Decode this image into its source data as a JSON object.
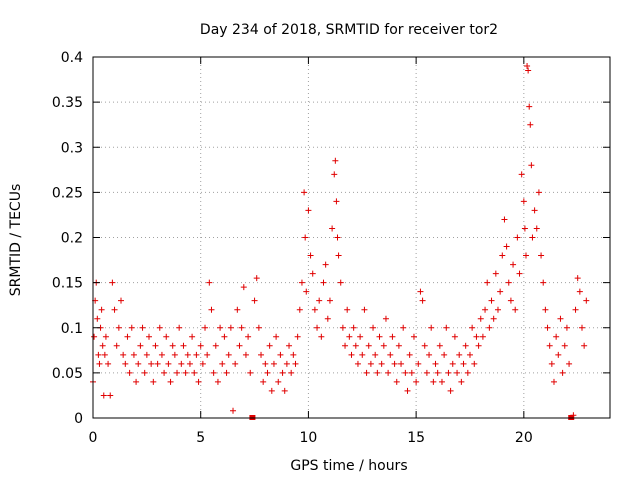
{
  "chart_data": {
    "type": "scatter",
    "title": "Day 234 of 2018, SRMTID for receiver tor2",
    "xlabel": "GPS time / hours",
    "ylabel": "SRMTID / TECUs",
    "xlim": [
      0,
      24
    ],
    "ylim": [
      0,
      0.4
    ],
    "xticks": [
      0,
      5,
      10,
      15,
      20
    ],
    "xtick_labels": [
      "0",
      "5",
      "10",
      "15",
      "20"
    ],
    "yticks": [
      0,
      0.05,
      0.1,
      0.15,
      0.2,
      0.25,
      0.3,
      0.35,
      0.4
    ],
    "ytick_labels": [
      "0",
      "0.05",
      "0.1",
      "0.15",
      "0.2",
      "0.25",
      "0.3",
      "0.35",
      "0.4"
    ],
    "grid": true,
    "marker": "+",
    "color": "#e00000",
    "series": [
      {
        "name": "SRMTID tor2",
        "points": [
          [
            0.0,
            0.04
          ],
          [
            0.05,
            0.09
          ],
          [
            0.1,
            0.13
          ],
          [
            0.15,
            0.15
          ],
          [
            0.2,
            0.11
          ],
          [
            0.25,
            0.07
          ],
          [
            0.3,
            0.06
          ],
          [
            0.35,
            0.1
          ],
          [
            0.4,
            0.12
          ],
          [
            0.45,
            0.08
          ],
          [
            0.5,
            0.025
          ],
          [
            0.55,
            0.07
          ],
          [
            0.6,
            0.09
          ],
          [
            0.7,
            0.06
          ],
          [
            0.8,
            0.025
          ],
          [
            0.9,
            0.15
          ],
          [
            1.0,
            0.12
          ],
          [
            1.1,
            0.08
          ],
          [
            1.2,
            0.1
          ],
          [
            1.3,
            0.13
          ],
          [
            1.4,
            0.07
          ],
          [
            1.5,
            0.06
          ],
          [
            1.6,
            0.09
          ],
          [
            1.7,
            0.05
          ],
          [
            1.8,
            0.1
          ],
          [
            1.9,
            0.07
          ],
          [
            2.0,
            0.04
          ],
          [
            2.1,
            0.06
          ],
          [
            2.2,
            0.08
          ],
          [
            2.3,
            0.1
          ],
          [
            2.4,
            0.05
          ],
          [
            2.5,
            0.07
          ],
          [
            2.6,
            0.09
          ],
          [
            2.7,
            0.06
          ],
          [
            2.8,
            0.04
          ],
          [
            2.9,
            0.08
          ],
          [
            3.0,
            0.06
          ],
          [
            3.1,
            0.1
          ],
          [
            3.2,
            0.07
          ],
          [
            3.3,
            0.05
          ],
          [
            3.4,
            0.09
          ],
          [
            3.5,
            0.06
          ],
          [
            3.6,
            0.04
          ],
          [
            3.7,
            0.08
          ],
          [
            3.8,
            0.07
          ],
          [
            3.9,
            0.05
          ],
          [
            4.0,
            0.1
          ],
          [
            4.1,
            0.06
          ],
          [
            4.2,
            0.08
          ],
          [
            4.3,
            0.05
          ],
          [
            4.4,
            0.07
          ],
          [
            4.5,
            0.06
          ],
          [
            4.6,
            0.09
          ],
          [
            4.7,
            0.05
          ],
          [
            4.8,
            0.07
          ],
          [
            4.9,
            0.04
          ],
          [
            5.0,
            0.08
          ],
          [
            5.1,
            0.06
          ],
          [
            5.2,
            0.1
          ],
          [
            5.3,
            0.07
          ],
          [
            5.4,
            0.15
          ],
          [
            5.5,
            0.12
          ],
          [
            5.6,
            0.05
          ],
          [
            5.7,
            0.08
          ],
          [
            5.8,
            0.04
          ],
          [
            5.9,
            0.1
          ],
          [
            6.0,
            0.06
          ],
          [
            6.1,
            0.09
          ],
          [
            6.2,
            0.05
          ],
          [
            6.3,
            0.07
          ],
          [
            6.4,
            0.1
          ],
          [
            6.5,
            0.008
          ],
          [
            6.6,
            0.06
          ],
          [
            6.7,
            0.12
          ],
          [
            6.8,
            0.08
          ],
          [
            6.9,
            0.1
          ],
          [
            7.0,
            0.145
          ],
          [
            7.1,
            0.07
          ],
          [
            7.2,
            0.09
          ],
          [
            7.3,
            0.05
          ],
          [
            7.4,
            0.0
          ],
          [
            7.5,
            0.13
          ],
          [
            7.6,
            0.155
          ],
          [
            7.7,
            0.1
          ],
          [
            7.8,
            0.07
          ],
          [
            7.9,
            0.04
          ],
          [
            8.0,
            0.06
          ],
          [
            8.1,
            0.05
          ],
          [
            8.2,
            0.08
          ],
          [
            8.3,
            0.03
          ],
          [
            8.4,
            0.06
          ],
          [
            8.5,
            0.09
          ],
          [
            8.6,
            0.04
          ],
          [
            8.7,
            0.07
          ],
          [
            8.8,
            0.05
          ],
          [
            8.9,
            0.03
          ],
          [
            9.0,
            0.06
          ],
          [
            9.1,
            0.08
          ],
          [
            9.2,
            0.05
          ],
          [
            9.3,
            0.07
          ],
          [
            9.4,
            0.06
          ],
          [
            9.5,
            0.09
          ],
          [
            9.6,
            0.12
          ],
          [
            9.7,
            0.15
          ],
          [
            9.8,
            0.25
          ],
          [
            9.85,
            0.2
          ],
          [
            9.9,
            0.14
          ],
          [
            10.0,
            0.23
          ],
          [
            10.1,
            0.18
          ],
          [
            10.2,
            0.16
          ],
          [
            10.3,
            0.12
          ],
          [
            10.4,
            0.1
          ],
          [
            10.5,
            0.13
          ],
          [
            10.6,
            0.09
          ],
          [
            10.7,
            0.15
          ],
          [
            10.8,
            0.17
          ],
          [
            10.9,
            0.11
          ],
          [
            11.0,
            0.13
          ],
          [
            11.1,
            0.21
          ],
          [
            11.2,
            0.27
          ],
          [
            11.25,
            0.285
          ],
          [
            11.3,
            0.24
          ],
          [
            11.35,
            0.2
          ],
          [
            11.4,
            0.18
          ],
          [
            11.5,
            0.15
          ],
          [
            11.6,
            0.1
          ],
          [
            11.7,
            0.08
          ],
          [
            11.8,
            0.12
          ],
          [
            11.9,
            0.09
          ],
          [
            12.0,
            0.07
          ],
          [
            12.1,
            0.1
          ],
          [
            12.2,
            0.08
          ],
          [
            12.3,
            0.06
          ],
          [
            12.4,
            0.09
          ],
          [
            12.5,
            0.07
          ],
          [
            12.6,
            0.12
          ],
          [
            12.7,
            0.05
          ],
          [
            12.8,
            0.08
          ],
          [
            12.9,
            0.06
          ],
          [
            13.0,
            0.1
          ],
          [
            13.1,
            0.07
          ],
          [
            13.2,
            0.05
          ],
          [
            13.3,
            0.09
          ],
          [
            13.4,
            0.06
          ],
          [
            13.5,
            0.08
          ],
          [
            13.6,
            0.11
          ],
          [
            13.7,
            0.05
          ],
          [
            13.8,
            0.07
          ],
          [
            13.9,
            0.09
          ],
          [
            14.0,
            0.06
          ],
          [
            14.1,
            0.04
          ],
          [
            14.2,
            0.08
          ],
          [
            14.3,
            0.06
          ],
          [
            14.4,
            0.1
          ],
          [
            14.5,
            0.05
          ],
          [
            14.6,
            0.03
          ],
          [
            14.7,
            0.07
          ],
          [
            14.8,
            0.05
          ],
          [
            14.9,
            0.09
          ],
          [
            15.0,
            0.04
          ],
          [
            15.1,
            0.06
          ],
          [
            15.2,
            0.14
          ],
          [
            15.3,
            0.13
          ],
          [
            15.4,
            0.08
          ],
          [
            15.5,
            0.05
          ],
          [
            15.6,
            0.07
          ],
          [
            15.7,
            0.1
          ],
          [
            15.8,
            0.04
          ],
          [
            15.9,
            0.06
          ],
          [
            16.0,
            0.05
          ],
          [
            16.1,
            0.08
          ],
          [
            16.2,
            0.04
          ],
          [
            16.3,
            0.07
          ],
          [
            16.4,
            0.1
          ],
          [
            16.5,
            0.05
          ],
          [
            16.6,
            0.03
          ],
          [
            16.7,
            0.06
          ],
          [
            16.8,
            0.09
          ],
          [
            16.9,
            0.05
          ],
          [
            17.0,
            0.07
          ],
          [
            17.1,
            0.04
          ],
          [
            17.2,
            0.06
          ],
          [
            17.3,
            0.08
          ],
          [
            17.4,
            0.05
          ],
          [
            17.5,
            0.07
          ],
          [
            17.6,
            0.1
          ],
          [
            17.7,
            0.06
          ],
          [
            17.8,
            0.09
          ],
          [
            17.9,
            0.08
          ],
          [
            18.0,
            0.11
          ],
          [
            18.1,
            0.09
          ],
          [
            18.2,
            0.12
          ],
          [
            18.3,
            0.15
          ],
          [
            18.4,
            0.1
          ],
          [
            18.5,
            0.13
          ],
          [
            18.6,
            0.11
          ],
          [
            18.7,
            0.16
          ],
          [
            18.8,
            0.12
          ],
          [
            18.9,
            0.14
          ],
          [
            19.0,
            0.18
          ],
          [
            19.1,
            0.22
          ],
          [
            19.2,
            0.19
          ],
          [
            19.3,
            0.15
          ],
          [
            19.4,
            0.13
          ],
          [
            19.5,
            0.17
          ],
          [
            19.6,
            0.12
          ],
          [
            19.7,
            0.2
          ],
          [
            19.8,
            0.16
          ],
          [
            19.9,
            0.27
          ],
          [
            20.0,
            0.24
          ],
          [
            20.05,
            0.21
          ],
          [
            20.1,
            0.18
          ],
          [
            20.15,
            0.39
          ],
          [
            20.2,
            0.385
          ],
          [
            20.25,
            0.345
          ],
          [
            20.3,
            0.325
          ],
          [
            20.35,
            0.28
          ],
          [
            20.4,
            0.2
          ],
          [
            20.5,
            0.23
          ],
          [
            20.6,
            0.21
          ],
          [
            20.7,
            0.25
          ],
          [
            20.8,
            0.18
          ],
          [
            20.9,
            0.15
          ],
          [
            21.0,
            0.12
          ],
          [
            21.1,
            0.1
          ],
          [
            21.2,
            0.08
          ],
          [
            21.3,
            0.06
          ],
          [
            21.4,
            0.04
          ],
          [
            21.5,
            0.09
          ],
          [
            21.6,
            0.07
          ],
          [
            21.7,
            0.11
          ],
          [
            21.8,
            0.05
          ],
          [
            21.9,
            0.08
          ],
          [
            22.0,
            0.1
          ],
          [
            22.1,
            0.06
          ],
          [
            22.2,
            0.0
          ],
          [
            22.3,
            0.003
          ],
          [
            22.4,
            0.12
          ],
          [
            22.5,
            0.155
          ],
          [
            22.6,
            0.14
          ],
          [
            22.7,
            0.1
          ],
          [
            22.8,
            0.08
          ],
          [
            22.9,
            0.13
          ]
        ]
      }
    ]
  }
}
